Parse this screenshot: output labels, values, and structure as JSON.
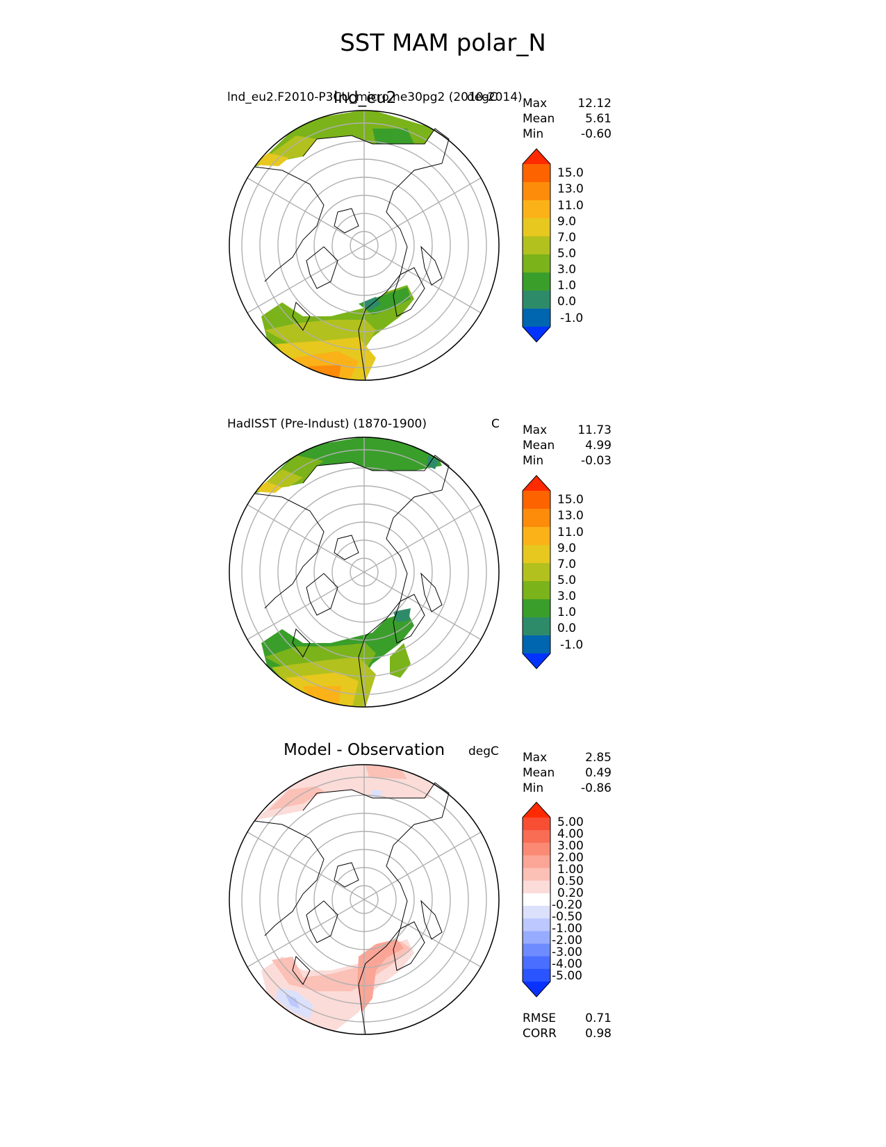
{
  "title": "SST MAM polar_N",
  "panels": [
    {
      "center_title": "lnd_eu2",
      "left_title": "lnd_eu2.F2010-P3CU_micro.ne30pg2 (2010-2014)",
      "right_title": "degC",
      "stats": [
        {
          "label": "Max",
          "value": "12.12"
        },
        {
          "label": "Mean",
          "value": "5.61"
        },
        {
          "label": "Min",
          "value": "-0.60"
        }
      ],
      "colorbar_ticks": [
        "15.0",
        "13.0",
        "11.0",
        "9.0",
        "7.0",
        "5.0",
        "3.0",
        "1.0",
        "0.0",
        "-1.0"
      ]
    },
    {
      "left_title": "HadISST (Pre-Indust) (1870-1900)",
      "right_title": "C",
      "stats": [
        {
          "label": "Max",
          "value": "11.73"
        },
        {
          "label": "Mean",
          "value": "4.99"
        },
        {
          "label": "Min",
          "value": "-0.03"
        }
      ],
      "colorbar_ticks": [
        "15.0",
        "13.0",
        "11.0",
        "9.0",
        "7.0",
        "5.0",
        "3.0",
        "1.0",
        "0.0",
        "-1.0"
      ]
    },
    {
      "center_title": "Model - Observation",
      "right_title": "degC",
      "stats": [
        {
          "label": "Max",
          "value": "2.85"
        },
        {
          "label": "Mean",
          "value": "0.49"
        },
        {
          "label": "Min",
          "value": "-0.86"
        }
      ],
      "colorbar_ticks": [
        "5.00",
        "4.00",
        "3.00",
        "2.00",
        "1.00",
        "0.50",
        "0.20",
        "-0.20",
        "-0.50",
        "-1.00",
        "-2.00",
        "-3.00",
        "-4.00",
        "-5.00"
      ],
      "extra_stats": [
        {
          "label": "RMSE",
          "value": "0.71"
        },
        {
          "label": "CORR",
          "value": "0.98"
        }
      ]
    }
  ],
  "colors": {
    "sst": [
      "#0033ff",
      "#0066b0",
      "#2e8b6a",
      "#3a9e2b",
      "#7bb31a",
      "#b2c11e",
      "#e6c81e",
      "#fbb218",
      "#fd8c0a",
      "#fd6400",
      "#ff2a00"
    ],
    "diff": [
      "#0a32ff",
      "#2a54ff",
      "#4a6eff",
      "#6e8cff",
      "#98acff",
      "#bcc8ff",
      "#dbe1fb",
      "#ffffff",
      "#fbdcd8",
      "#fbc0b6",
      "#fba596",
      "#fa8a74",
      "#f96d54",
      "#f74e34",
      "#ff2a00"
    ],
    "coast": "#000000",
    "grid": "#b0b0b0"
  }
}
